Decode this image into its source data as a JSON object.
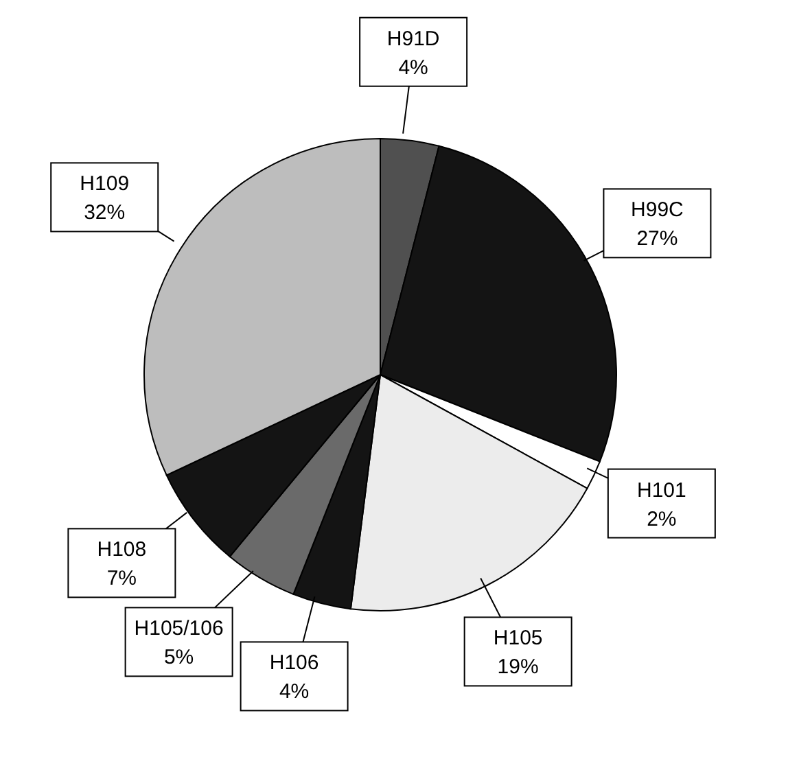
{
  "chart_data": {
    "type": "pie",
    "categories": [
      "H91D",
      "H99C",
      "H101",
      "H105",
      "H106",
      "H105/106",
      "H108",
      "H109"
    ],
    "values": [
      4,
      27,
      2,
      19,
      4,
      5,
      7,
      32
    ],
    "value_labels": [
      "4%",
      "27%",
      "2%",
      "19%",
      "4%",
      "5%",
      "7%",
      "32%"
    ],
    "colors": [
      "#505050",
      "#141414",
      "#ffffff",
      "#ececec",
      "#141414",
      "#6a6a6a",
      "#141414",
      "#bdbdbd"
    ]
  }
}
